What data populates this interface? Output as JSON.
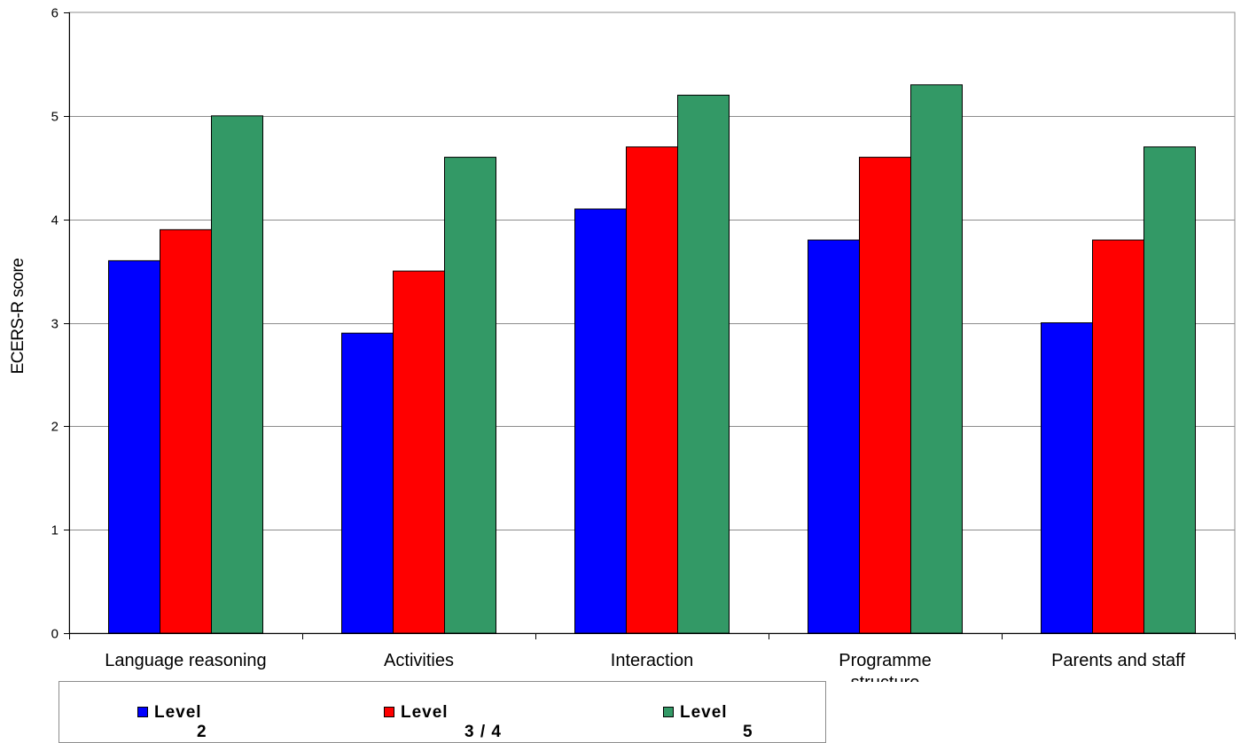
{
  "chart_data": {
    "type": "bar",
    "ylabel": "ECERS-R score",
    "ylim": [
      0,
      6
    ],
    "yticks": [
      "0",
      "1",
      "2",
      "3",
      "4",
      "5",
      "6"
    ],
    "grid": true,
    "legend_position": "bottom",
    "categories": [
      [
        "Language reasoning"
      ],
      [
        "Activities"
      ],
      [
        "Interaction"
      ],
      [
        "Programme",
        "structure"
      ],
      [
        "Parents and staff"
      ]
    ],
    "series": [
      {
        "name": "Level",
        "subscript": "2",
        "color": "#0000ff",
        "values": [
          3.6,
          2.9,
          4.1,
          3.8,
          3.0
        ]
      },
      {
        "name": "Level",
        "subscript": "3 / 4",
        "color": "#ff0000",
        "values": [
          3.9,
          3.5,
          4.7,
          4.6,
          3.8
        ]
      },
      {
        "name": "Level",
        "subscript": "5",
        "color": "#339966",
        "values": [
          5.0,
          4.6,
          5.2,
          5.3,
          4.7
        ]
      }
    ]
  }
}
